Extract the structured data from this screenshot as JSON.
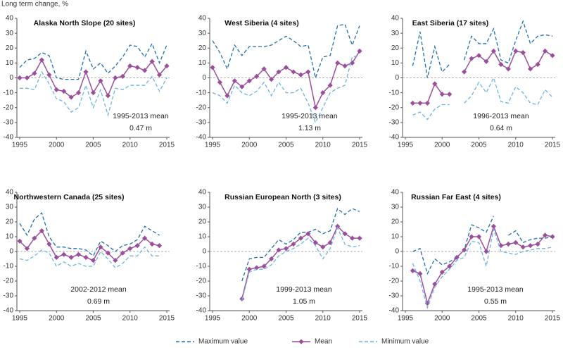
{
  "y_label": "Long term change, %",
  "chart_data": [
    {
      "type": "line",
      "title": "Alaska North Slope (20 sites)",
      "annotation": [
        "1995-2013 mean",
        "0.47 m"
      ],
      "x": [
        1995,
        1996,
        1997,
        1998,
        1999,
        2000,
        2001,
        2002,
        2003,
        2004,
        2005,
        2006,
        2007,
        2008,
        2009,
        2010,
        2011,
        2012,
        2013,
        2014,
        2015
      ],
      "xlim": [
        1995,
        2015
      ],
      "xticks": [
        1995,
        2000,
        2005,
        2010,
        2015
      ],
      "ylim": [
        -40,
        40
      ],
      "yticks": [
        -40,
        -30,
        -20,
        -10,
        0,
        10,
        20,
        30,
        40
      ],
      "zero_line": true,
      "series": [
        {
          "name": "Maximum value",
          "color": "#1f6fb2",
          "dash": true,
          "values": [
            7,
            12,
            13,
            17,
            15,
            0,
            -1,
            -1,
            -1,
            18,
            6,
            10,
            3,
            8,
            14,
            22,
            21,
            14,
            23,
            10,
            22
          ]
        },
        {
          "name": "Mean",
          "color": "#9b4f9b",
          "markers": true,
          "values": [
            0,
            0,
            3,
            12,
            2,
            -8,
            -9,
            -13,
            -10,
            4,
            -10,
            -2,
            -12,
            0,
            1,
            8,
            7,
            5,
            11,
            2,
            8
          ]
        },
        {
          "name": "Minimum value",
          "color": "#6cb4e4",
          "dash": true,
          "values": [
            -7,
            -7,
            -8,
            4,
            -4,
            -14,
            -16,
            -23,
            -20,
            -5,
            -20,
            -8,
            -25,
            -7,
            -8,
            -5,
            -5,
            -5,
            1,
            -9,
            0
          ]
        }
      ]
    },
    {
      "type": "line",
      "title": "West Siberia (4 sites)",
      "annotation": [
        "1995-2013 mean",
        "1.13 m"
      ],
      "x": [
        1995,
        1996,
        1997,
        1998,
        1999,
        2000,
        2001,
        2002,
        2003,
        2004,
        2005,
        2006,
        2007,
        2008,
        2009,
        2010,
        2011,
        2012,
        2013,
        2014,
        2015
      ],
      "xlim": [
        1995,
        2015
      ],
      "xticks": [
        1995,
        2000,
        2005,
        2010,
        2015
      ],
      "ylim": [
        -40,
        40
      ],
      "yticks": [
        -40,
        -30,
        -20,
        -10,
        0,
        10,
        20,
        30,
        40
      ],
      "zero_line": true,
      "series": [
        {
          "color": "#1f6fb2",
          "dash": true,
          "values": [
            25,
            17,
            6,
            22,
            15,
            21,
            21,
            21,
            22,
            25,
            28,
            25,
            21,
            22,
            0,
            14,
            15,
            35,
            36,
            22,
            35
          ]
        },
        {
          "color": "#9b4f9b",
          "markers": true,
          "values": [
            7,
            -3,
            -12,
            -2,
            -6,
            -2,
            1,
            6,
            -1,
            4,
            7,
            4,
            2,
            4,
            -20,
            -10,
            -5,
            10,
            8,
            10,
            18
          ]
        },
        {
          "color": "#6cb4e4",
          "dash": true,
          "values": [
            -10,
            -12,
            -17,
            -5,
            -10,
            -12,
            -9,
            -3,
            -12,
            -3,
            -10,
            -10,
            -7,
            -17,
            -30,
            -20,
            -10,
            -7,
            -5,
            14,
            15
          ]
        }
      ]
    },
    {
      "type": "line",
      "title": "East Siberia (17 sites)",
      "annotation": [
        "1996-2013 mean",
        "0.64 m"
      ],
      "x": [
        1995,
        1996,
        1997,
        1998,
        1999,
        2000,
        2001,
        2002,
        2003,
        2004,
        2005,
        2006,
        2007,
        2008,
        2009,
        2010,
        2011,
        2012,
        2013,
        2014,
        2015
      ],
      "xlim": [
        1995,
        2015
      ],
      "xticks": [
        1995,
        2000,
        2005,
        2010,
        2015
      ],
      "ylim": [
        -40,
        40
      ],
      "yticks": [
        -40,
        -30,
        -20,
        -10,
        0,
        10,
        20,
        30,
        40
      ],
      "zero_line": true,
      "series": [
        {
          "color": "#1f6fb2",
          "dash": true,
          "values": [
            null,
            8,
            31,
            0,
            21,
            4,
            9,
            null,
            12,
            28,
            23,
            23,
            33,
            12,
            10,
            25,
            38,
            23,
            28,
            29,
            28
          ]
        },
        {
          "color": "#9b4f9b",
          "markers": true,
          "values": [
            null,
            -17,
            -17,
            -17,
            -4,
            -11,
            -11,
            null,
            4,
            13,
            15,
            11,
            18,
            9,
            6,
            18,
            17,
            6,
            9,
            18,
            15
          ]
        },
        {
          "color": "#6cb4e4",
          "dash": true,
          "values": [
            null,
            -25,
            -23,
            -28,
            -21,
            -18,
            -18,
            null,
            -17,
            -12,
            -3,
            -10,
            0,
            -16,
            -17,
            -6,
            -10,
            -17,
            -18,
            -8,
            -13
          ]
        }
      ]
    },
    {
      "type": "line",
      "title": "Northwestern Canada (25 sites)",
      "annotation": [
        "2002-2012 mean",
        "0.69 m"
      ],
      "x": [
        1995,
        1996,
        1997,
        1998,
        1999,
        2000,
        2001,
        2002,
        2003,
        2004,
        2005,
        2006,
        2007,
        2008,
        2009,
        2010,
        2011,
        2012,
        2013,
        2014,
        2015
      ],
      "xlim": [
        1995,
        2015
      ],
      "xticks": [
        1995,
        2000,
        2005,
        2010,
        2015
      ],
      "ylim": [
        -40,
        40
      ],
      "yticks": [
        -40,
        -30,
        -20,
        -10,
        0,
        10,
        20,
        30,
        40
      ],
      "zero_line": true,
      "series": [
        {
          "color": "#1f6fb2",
          "dash": true,
          "values": [
            19,
            11,
            22,
            26,
            10,
            3,
            3,
            2,
            2,
            1,
            -3,
            7,
            4,
            0,
            4,
            5,
            8,
            17,
            14,
            11,
            null
          ]
        },
        {
          "color": "#9b4f9b",
          "markers": true,
          "values": [
            7,
            2,
            9,
            14,
            5,
            -4,
            -2,
            -4,
            -2,
            -4,
            -6,
            3,
            -1,
            -6,
            -1,
            2,
            4,
            9,
            5,
            4,
            null
          ]
        },
        {
          "color": "#6cb4e4",
          "dash": true,
          "values": [
            -5,
            -6,
            -3,
            1,
            -1,
            -10,
            -7,
            -10,
            -8,
            -10,
            -10,
            0,
            -5,
            -11,
            -8,
            -3,
            -3,
            3,
            -3,
            -3,
            null
          ]
        }
      ]
    },
    {
      "type": "line",
      "title": "Russian European North (3 sites)",
      "annotation": [
        "1999-2013 mean",
        "1.05 m"
      ],
      "x": [
        1995,
        1996,
        1997,
        1998,
        1999,
        2000,
        2001,
        2002,
        2003,
        2004,
        2005,
        2006,
        2007,
        2008,
        2009,
        2010,
        2011,
        2012,
        2013,
        2014,
        2015
      ],
      "xlim": [
        1995,
        2015
      ],
      "xticks": [
        1995,
        2000,
        2005,
        2010,
        2015
      ],
      "ylim": [
        -40,
        40
      ],
      "yticks": [
        -40,
        -30,
        -20,
        -10,
        0,
        10,
        20,
        30,
        40
      ],
      "zero_line": true,
      "series": [
        {
          "color": "#1f6fb2",
          "dash": true,
          "values": [
            null,
            null,
            null,
            null,
            -20,
            -5,
            -4,
            -4,
            2,
            8,
            5,
            8,
            13,
            13,
            15,
            12,
            14,
            29,
            25,
            29,
            27
          ]
        },
        {
          "color": "#9b4f9b",
          "markers": true,
          "values": [
            null,
            null,
            null,
            null,
            -32,
            -12,
            -11,
            -10,
            -5,
            1,
            2,
            5,
            9,
            12,
            6,
            3,
            6,
            17,
            12,
            9,
            9
          ]
        },
        {
          "color": "#6cb4e4",
          "dash": true,
          "values": [
            null,
            null,
            null,
            null,
            -33,
            -14,
            -12,
            -12,
            -9,
            -3,
            0,
            2,
            5,
            9,
            4,
            -5,
            2,
            16,
            5,
            3,
            4
          ]
        }
      ]
    },
    {
      "type": "line",
      "title": "Russian Far East (4 sites)",
      "annotation": [
        "1995-2013 mean",
        "0.55 m"
      ],
      "x": [
        1995,
        1996,
        1997,
        1998,
        1999,
        2000,
        2001,
        2002,
        2003,
        2004,
        2005,
        2006,
        2007,
        2008,
        2009,
        2010,
        2011,
        2012,
        2013,
        2014,
        2015
      ],
      "xlim": [
        1995,
        2015
      ],
      "xticks": [
        1995,
        2000,
        2005,
        2010,
        2015
      ],
      "ylim": [
        -40,
        40
      ],
      "yticks": [
        -40,
        -30,
        -20,
        -10,
        0,
        10,
        20,
        30,
        40
      ],
      "zero_line": true,
      "series": [
        {
          "color": "#1f6fb2",
          "dash": true,
          "values": [
            null,
            0,
            2,
            -15,
            -5,
            -9,
            -7,
            -4,
            1,
            18,
            16,
            13,
            24,
            null,
            11,
            14,
            6,
            8,
            9,
            9,
            10
          ]
        },
        {
          "color": "#9b4f9b",
          "markers": true,
          "values": [
            null,
            -13,
            -15,
            -35,
            -22,
            -14,
            -10,
            -4,
            1,
            10,
            10,
            0,
            17,
            4,
            5,
            6,
            3,
            4,
            5,
            11,
            10
          ]
        },
        {
          "color": "#6cb4e4",
          "dash": true,
          "values": [
            null,
            -8,
            -20,
            -38,
            -24,
            -17,
            -12,
            -6,
            -4,
            7,
            6,
            -10,
            15,
            0,
            -1,
            -2,
            0,
            1,
            2,
            2,
            3
          ]
        }
      ]
    }
  ]
}
